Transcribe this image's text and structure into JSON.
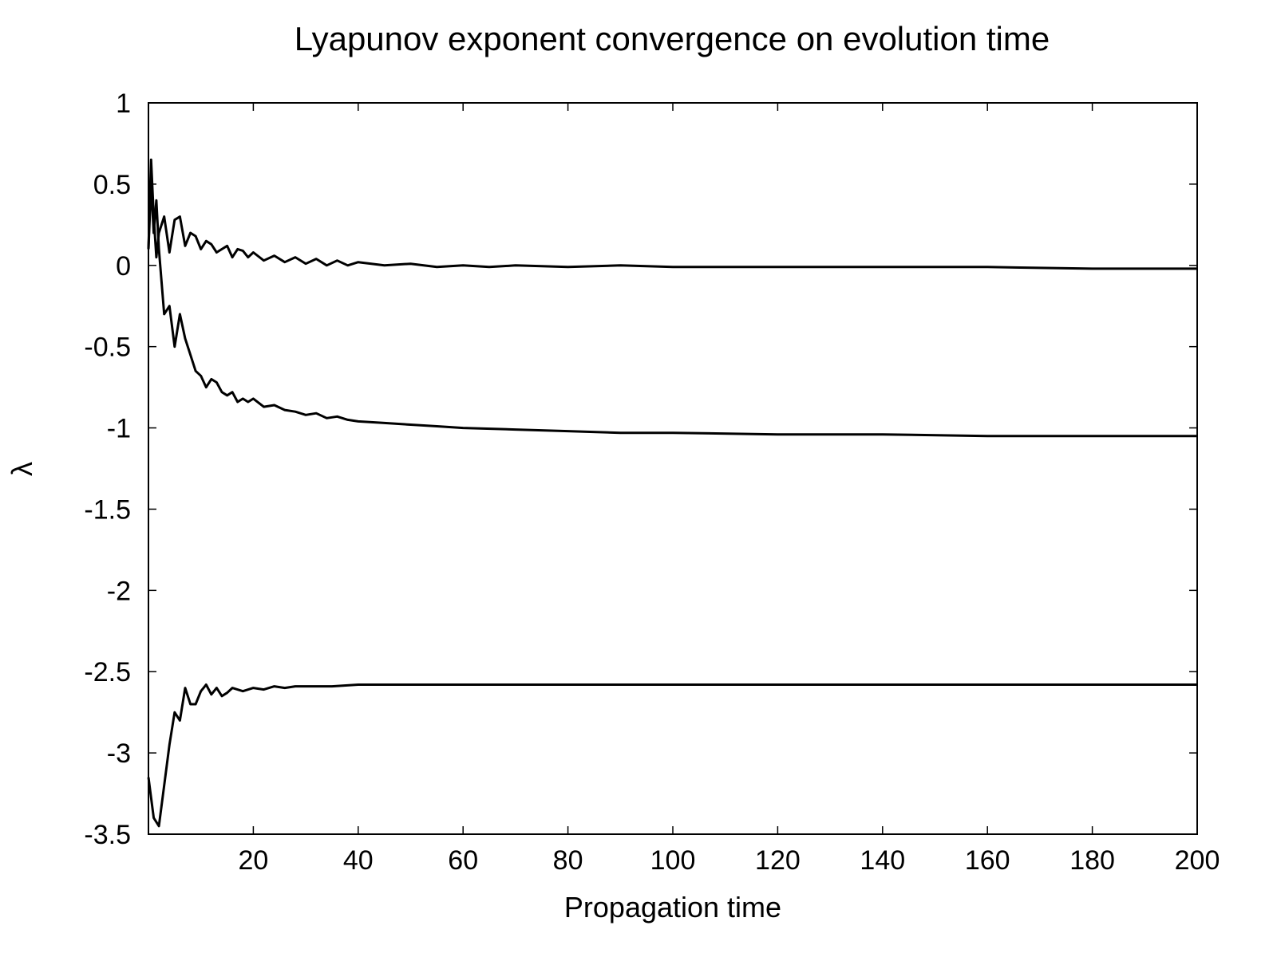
{
  "chart_data": {
    "type": "line",
    "title": "Lyapunov exponent convergence on evolution time",
    "xlabel": "Propagation time",
    "ylabel": "λ",
    "xlim": [
      0,
      200
    ],
    "ylim": [
      -3.5,
      1
    ],
    "xticks": [
      20,
      40,
      60,
      80,
      100,
      120,
      140,
      160,
      180,
      200
    ],
    "xtick_labels": [
      "20",
      "40",
      "60",
      "80",
      "100",
      "120",
      "140",
      "160",
      "180",
      "200"
    ],
    "yticks": [
      1,
      0.5,
      0,
      -0.5,
      -1,
      -1.5,
      -2,
      -2.5,
      -3,
      -3.5
    ],
    "ytick_labels": [
      "1",
      "0.5",
      "0",
      "-0.5",
      "-1",
      "-1.5",
      "-2",
      "-2.5",
      "-3",
      "-3.5"
    ],
    "grid": false,
    "legend": "none",
    "line_color": "#000000",
    "series": [
      {
        "x": [
          0,
          0.5,
          1,
          1.5,
          2,
          3,
          4,
          5,
          6,
          7,
          8,
          9,
          10,
          11,
          12,
          13,
          14,
          15,
          16,
          17,
          18,
          19,
          20,
          22,
          24,
          26,
          28,
          30,
          32,
          34,
          36,
          38,
          40,
          45,
          50,
          55,
          60,
          65,
          70,
          80,
          90,
          100,
          120,
          140,
          160,
          180,
          200
        ],
        "y": [
          0.1,
          0.65,
          0.3,
          0.05,
          0.2,
          0.3,
          0.08,
          0.28,
          0.3,
          0.12,
          0.2,
          0.18,
          0.1,
          0.15,
          0.13,
          0.08,
          0.1,
          0.12,
          0.05,
          0.1,
          0.09,
          0.05,
          0.08,
          0.03,
          0.06,
          0.02,
          0.05,
          0.01,
          0.04,
          0.0,
          0.03,
          0.0,
          0.02,
          0.0,
          0.01,
          -0.01,
          0.0,
          -0.01,
          0.0,
          -0.01,
          0.0,
          -0.01,
          -0.01,
          -0.01,
          -0.01,
          -0.02,
          -0.02
        ]
      },
      {
        "x": [
          0,
          0.5,
          1,
          1.5,
          2,
          3,
          4,
          5,
          6,
          7,
          8,
          9,
          10,
          11,
          12,
          13,
          14,
          15,
          16,
          17,
          18,
          19,
          20,
          22,
          24,
          26,
          28,
          30,
          32,
          34,
          36,
          38,
          40,
          45,
          50,
          55,
          60,
          70,
          80,
          90,
          100,
          120,
          140,
          160,
          180,
          200
        ],
        "y": [
          0.1,
          0.5,
          0.2,
          0.4,
          0.1,
          -0.3,
          -0.25,
          -0.5,
          -0.3,
          -0.45,
          -0.55,
          -0.65,
          -0.68,
          -0.75,
          -0.7,
          -0.72,
          -0.78,
          -0.8,
          -0.78,
          -0.84,
          -0.82,
          -0.84,
          -0.82,
          -0.87,
          -0.86,
          -0.89,
          -0.9,
          -0.92,
          -0.91,
          -0.94,
          -0.93,
          -0.95,
          -0.96,
          -0.97,
          -0.98,
          -0.99,
          -1.0,
          -1.01,
          -1.02,
          -1.03,
          -1.03,
          -1.04,
          -1.04,
          -1.05,
          -1.05,
          -1.05
        ]
      },
      {
        "x": [
          0,
          1,
          2,
          3,
          4,
          5,
          6,
          7,
          8,
          9,
          10,
          11,
          12,
          13,
          14,
          15,
          16,
          18,
          20,
          22,
          24,
          26,
          28,
          30,
          35,
          40,
          50,
          60,
          80,
          100,
          120,
          140,
          160,
          180,
          200
        ],
        "y": [
          -3.15,
          -3.4,
          -3.45,
          -3.2,
          -2.95,
          -2.75,
          -2.8,
          -2.6,
          -2.7,
          -2.7,
          -2.62,
          -2.58,
          -2.64,
          -2.6,
          -2.65,
          -2.63,
          -2.6,
          -2.62,
          -2.6,
          -2.61,
          -2.59,
          -2.6,
          -2.59,
          -2.59,
          -2.59,
          -2.58,
          -2.58,
          -2.58,
          -2.58,
          -2.58,
          -2.58,
          -2.58,
          -2.58,
          -2.58,
          -2.58
        ]
      }
    ]
  }
}
